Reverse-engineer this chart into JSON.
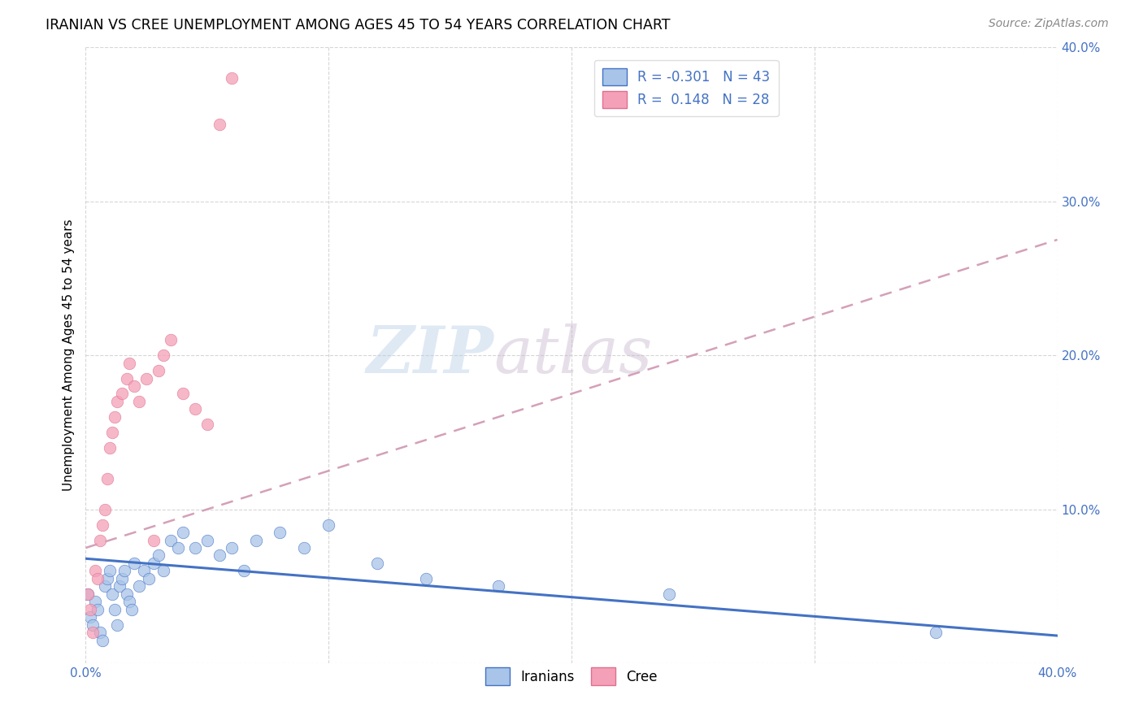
{
  "title": "IRANIAN VS CREE UNEMPLOYMENT AMONG AGES 45 TO 54 YEARS CORRELATION CHART",
  "source": "Source: ZipAtlas.com",
  "ylabel": "Unemployment Among Ages 45 to 54 years",
  "xlim": [
    0.0,
    0.4
  ],
  "ylim": [
    0.0,
    0.4
  ],
  "xticks": [
    0.0,
    0.1,
    0.2,
    0.3,
    0.4
  ],
  "yticks": [
    0.0,
    0.1,
    0.2,
    0.3,
    0.4
  ],
  "xticklabels": [
    "0.0%",
    "",
    "",
    "",
    "40.0%"
  ],
  "yticklabels": [
    "",
    "10.0%",
    "20.0%",
    "30.0%",
    "40.0%"
  ],
  "background_color": "#ffffff",
  "grid_color": "#cccccc",
  "watermark_zip": "ZIP",
  "watermark_atlas": "atlas",
  "iranian_color": "#a8c4e8",
  "iranian_edge_color": "#4472c4",
  "cree_color": "#f4a0b8",
  "cree_edge_color": "#e07090",
  "iranian_line_color": "#4472c4",
  "cree_line_color": "#d4a0b8",
  "iranians_x": [
    0.001,
    0.002,
    0.003,
    0.004,
    0.005,
    0.006,
    0.007,
    0.008,
    0.009,
    0.01,
    0.011,
    0.012,
    0.013,
    0.014,
    0.015,
    0.016,
    0.017,
    0.018,
    0.019,
    0.02,
    0.022,
    0.024,
    0.026,
    0.028,
    0.03,
    0.032,
    0.035,
    0.038,
    0.04,
    0.045,
    0.05,
    0.055,
    0.06,
    0.065,
    0.07,
    0.08,
    0.09,
    0.1,
    0.12,
    0.14,
    0.17,
    0.24,
    0.35
  ],
  "iranians_y": [
    0.045,
    0.03,
    0.025,
    0.04,
    0.035,
    0.02,
    0.015,
    0.05,
    0.055,
    0.06,
    0.045,
    0.035,
    0.025,
    0.05,
    0.055,
    0.06,
    0.045,
    0.04,
    0.035,
    0.065,
    0.05,
    0.06,
    0.055,
    0.065,
    0.07,
    0.06,
    0.08,
    0.075,
    0.085,
    0.075,
    0.08,
    0.07,
    0.075,
    0.06,
    0.08,
    0.085,
    0.075,
    0.09,
    0.065,
    0.055,
    0.05,
    0.045,
    0.02
  ],
  "cree_x": [
    0.001,
    0.002,
    0.003,
    0.004,
    0.005,
    0.006,
    0.007,
    0.008,
    0.009,
    0.01,
    0.011,
    0.012,
    0.013,
    0.015,
    0.017,
    0.018,
    0.02,
    0.022,
    0.025,
    0.028,
    0.03,
    0.032,
    0.035,
    0.04,
    0.045,
    0.05,
    0.055,
    0.06
  ],
  "cree_y": [
    0.045,
    0.035,
    0.02,
    0.06,
    0.055,
    0.08,
    0.09,
    0.1,
    0.12,
    0.14,
    0.15,
    0.16,
    0.17,
    0.175,
    0.185,
    0.195,
    0.18,
    0.17,
    0.185,
    0.08,
    0.19,
    0.2,
    0.21,
    0.175,
    0.165,
    0.155,
    0.35,
    0.38
  ],
  "iranian_trend_x": [
    0.0,
    0.4
  ],
  "iranian_trend_y": [
    0.068,
    0.018
  ],
  "cree_trend_x": [
    0.0,
    0.4
  ],
  "cree_trend_y": [
    0.075,
    0.275
  ],
  "legend1_label": "R = -0.301   N = 43",
  "legend2_label": "R =  0.148   N = 28"
}
